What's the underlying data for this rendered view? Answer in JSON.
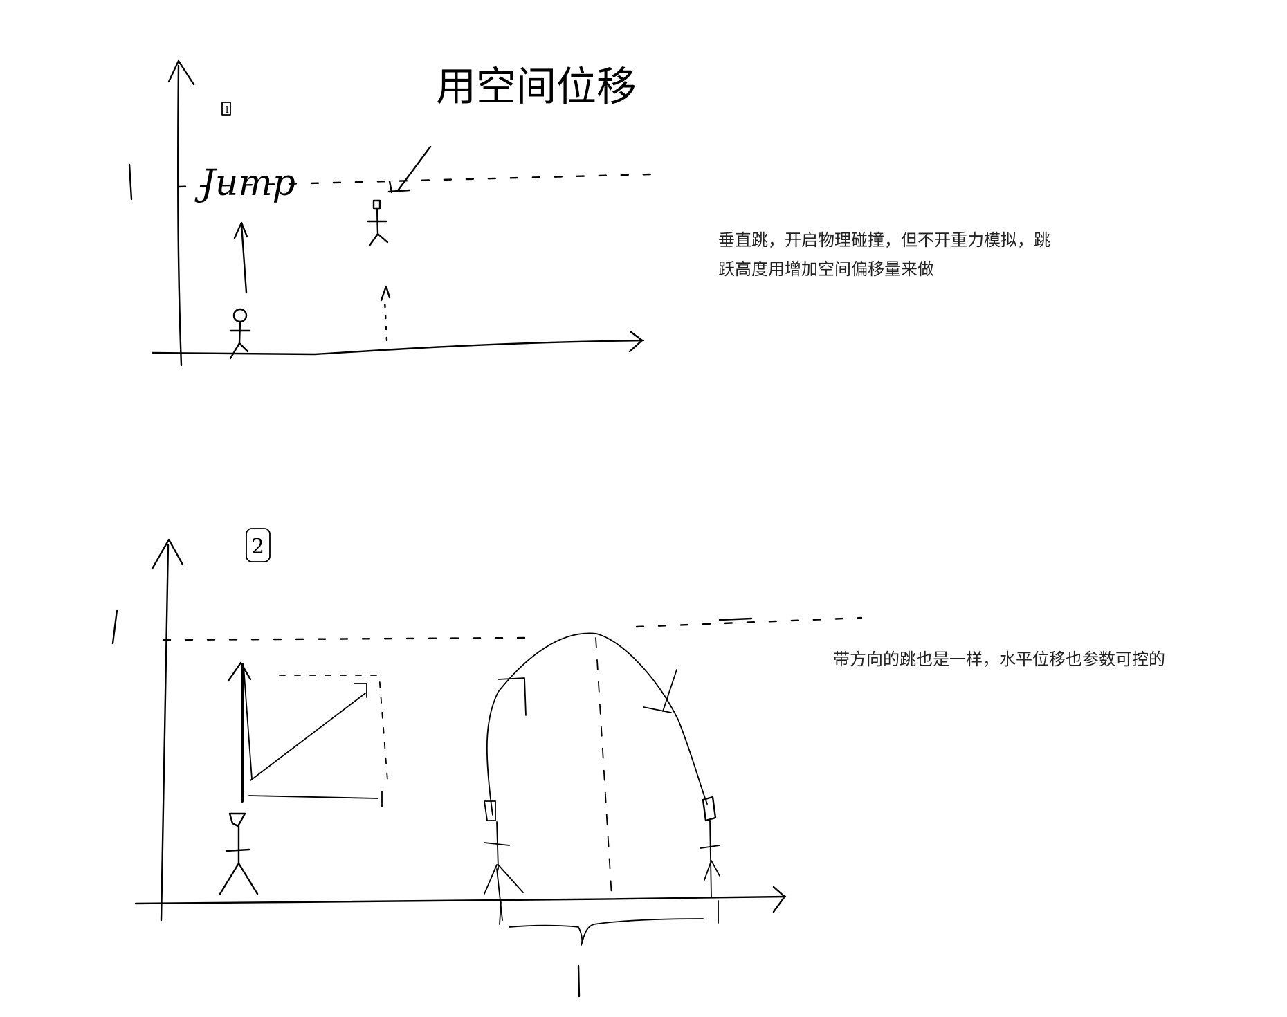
{
  "sketch1": {
    "number_label": "1",
    "jump_label": "Jump",
    "height_tick": "1",
    "annotation_label": "用空间位移",
    "note": "垂直跳，开启物理碰撞，但不开重力模拟，跳跃高度用增加空间偏移量来做"
  },
  "sketch2": {
    "number_label": "2",
    "height_tick": "1",
    "range_tick": "1",
    "note": "带方向的跳也是一样，水平位移也参数可控的"
  }
}
